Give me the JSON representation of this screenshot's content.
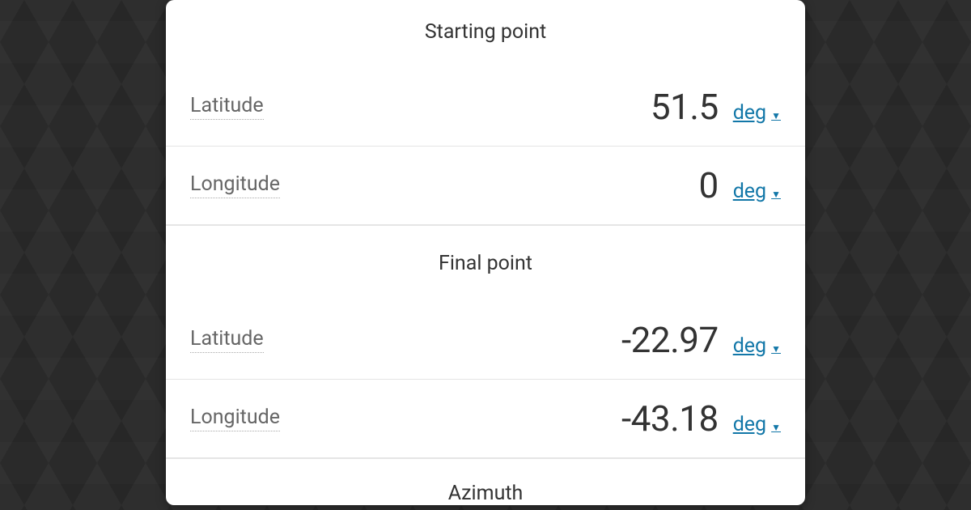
{
  "colors": {
    "page_bg": "#2a2a2a",
    "card_bg": "#ffffff",
    "title_text": "#333333",
    "label_text": "#666666",
    "value_text": "#333333",
    "link": "#1277a8",
    "divider": "#e5e5e5"
  },
  "sections": {
    "start": {
      "title": "Starting point",
      "lat": {
        "label": "Latitude",
        "value": "51.5",
        "unit": "deg"
      },
      "lon": {
        "label": "Longitude",
        "value": "0",
        "unit": "deg"
      }
    },
    "final": {
      "title": "Final point",
      "lat": {
        "label": "Latitude",
        "value": "-22.97",
        "unit": "deg"
      },
      "lon": {
        "label": "Longitude",
        "value": "-43.18",
        "unit": "deg"
      }
    },
    "azimuth": {
      "title": "Azimuth"
    }
  }
}
